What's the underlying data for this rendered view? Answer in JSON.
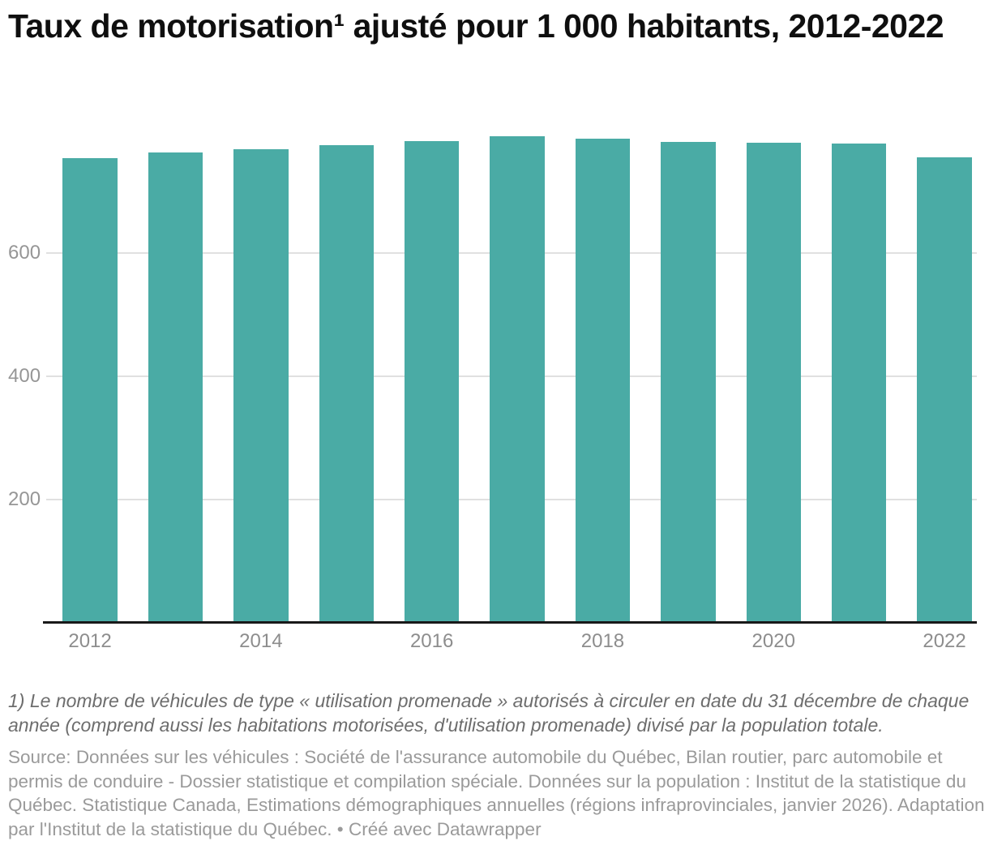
{
  "title": "Taux de motorisation¹ ajusté pour 1 000 habitants, 2012-2022",
  "chart_data": {
    "type": "bar",
    "title": "Taux de motorisation¹ ajusté pour 1 000 habitants, 2012-2022",
    "categories": [
      "2012",
      "2013",
      "2014",
      "2015",
      "2016",
      "2017",
      "2018",
      "2019",
      "2020",
      "2021",
      "2022"
    ],
    "values": [
      754,
      763,
      769,
      775,
      782,
      789,
      786,
      780,
      779,
      778,
      755
    ],
    "xlabel": "",
    "ylabel": "",
    "ylim": [
      0,
      820
    ],
    "yticks": [
      200,
      400,
      600
    ],
    "x_tick_labels": [
      "2012",
      "2014",
      "2016",
      "2018",
      "2020",
      "2022"
    ],
    "grid": true,
    "legend": "none",
    "colors": {
      "bar": "#4aaba5",
      "gridline": "#e0e0e0",
      "axis_line": "#191919",
      "y_tick_label": "#969696",
      "x_tick_label": "#8d8d8d"
    }
  },
  "footer": {
    "footnote": "1) Le nombre de véhicules de type « utilisation promenade » autorisés à circuler en date du 31 décembre de chaque année (comprend aussi les habitations motorisées, d'utilisation promenade) divisé par la population totale.",
    "source_label": "Source:",
    "source_text": "Données sur les véhicules : Société de l'assurance automobile du Québec, Bilan routier, parc automobile et permis de conduire - Dossier statistique et compilation spéciale. Données sur la population : Institut de la statistique du Québec. Statistique Canada, Estimations démographiques annuelles (régions infraprovinciales, janvier 2026). Adaptation par l'Institut de la statistique du Québec.",
    "credit_separator": "•",
    "credit": "Créé avec Datawrapper"
  }
}
